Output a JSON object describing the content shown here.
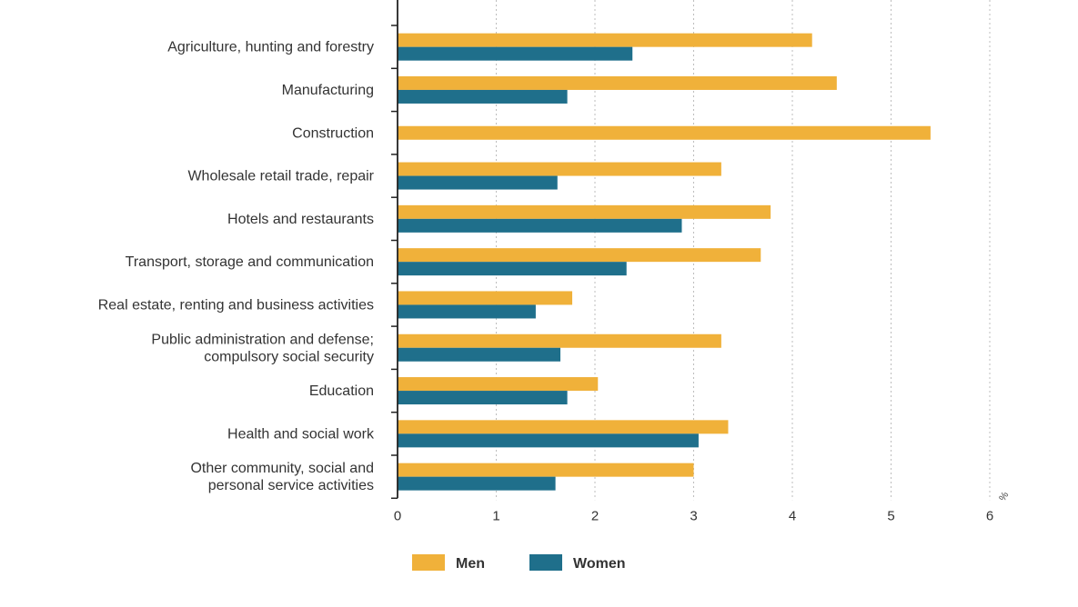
{
  "chart_data": {
    "type": "bar",
    "orientation": "horizontal",
    "title": "",
    "xlabel": "",
    "ylabel": "",
    "unit_label": "%",
    "xlim": [
      0,
      6
    ],
    "xticks": [
      "0",
      "1",
      "2",
      "3",
      "4",
      "5",
      "6"
    ],
    "grid": true,
    "legend_position": "bottom",
    "categories": [
      [
        "Agriculture, hunting and forestry"
      ],
      [
        "Manufacturing"
      ],
      [
        "Construction"
      ],
      [
        "Wholesale retail trade, repair"
      ],
      [
        "Hotels and restaurants"
      ],
      [
        "Transport, storage and communication"
      ],
      [
        "Real estate, renting and business activities"
      ],
      [
        "Public administration and defense;",
        "compulsory social security"
      ],
      [
        "Education"
      ],
      [
        "Health and social work"
      ],
      [
        "Other community, social and",
        "personal service activities"
      ]
    ],
    "series": [
      {
        "name": "Men",
        "color": "#f0b13a",
        "values": [
          4.2,
          4.45,
          5.4,
          3.28,
          3.78,
          3.68,
          1.77,
          3.28,
          2.03,
          3.35,
          3.0
        ]
      },
      {
        "name": "Women",
        "color": "#1f6f8b",
        "values": [
          2.38,
          1.72,
          null,
          1.62,
          2.88,
          2.32,
          1.4,
          1.65,
          1.72,
          3.05,
          1.6
        ]
      }
    ]
  }
}
